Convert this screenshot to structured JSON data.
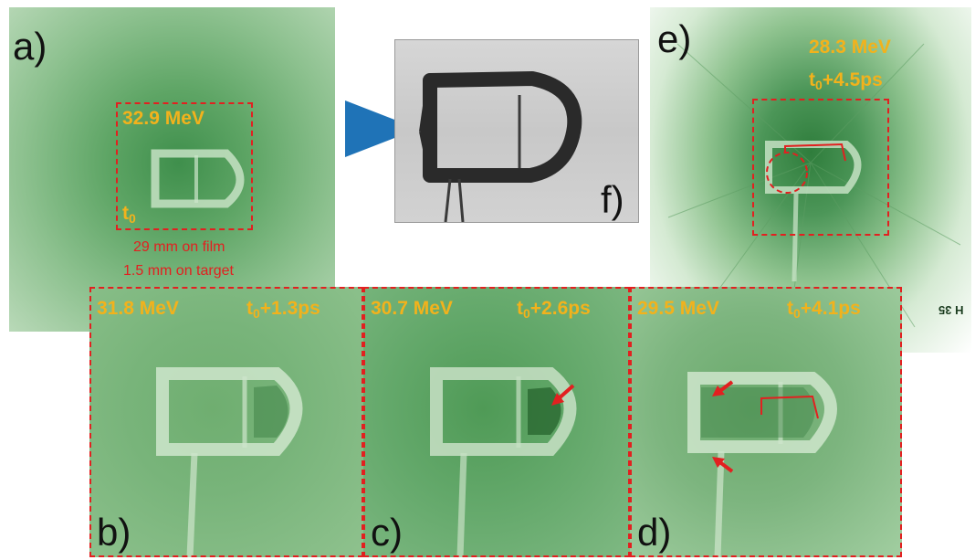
{
  "panels": {
    "a": {
      "letter": "a)",
      "energy": "32.9 MeV",
      "time_base": "t",
      "time_sub": "0",
      "time_rest": "",
      "scale_film": "29 mm on film",
      "scale_target": "1.5 mm on target"
    },
    "b": {
      "letter": "b)",
      "energy": "31.8 MeV",
      "time_base": "t",
      "time_sub": "0",
      "time_rest": "+1.3ps"
    },
    "c": {
      "letter": "c)",
      "energy": "30.7 MeV",
      "time_base": "t",
      "time_sub": "0",
      "time_rest": "+2.6ps"
    },
    "d": {
      "letter": "d)",
      "energy": "29.5 MeV",
      "time_base": "t",
      "time_sub": "0",
      "time_rest": "+4.1ps"
    },
    "e": {
      "letter": "e)",
      "energy": "28.3 MeV",
      "time_base": "t",
      "time_sub": "0",
      "time_rest": "+4.5ps",
      "film_mark": "H 35"
    },
    "f": {
      "letter": "f)"
    }
  },
  "colors": {
    "label_yellow": "#f2b21c",
    "dash_red": "#e22020",
    "arrow_blue": "#1f73b7",
    "film_green": "#4c9658"
  }
}
